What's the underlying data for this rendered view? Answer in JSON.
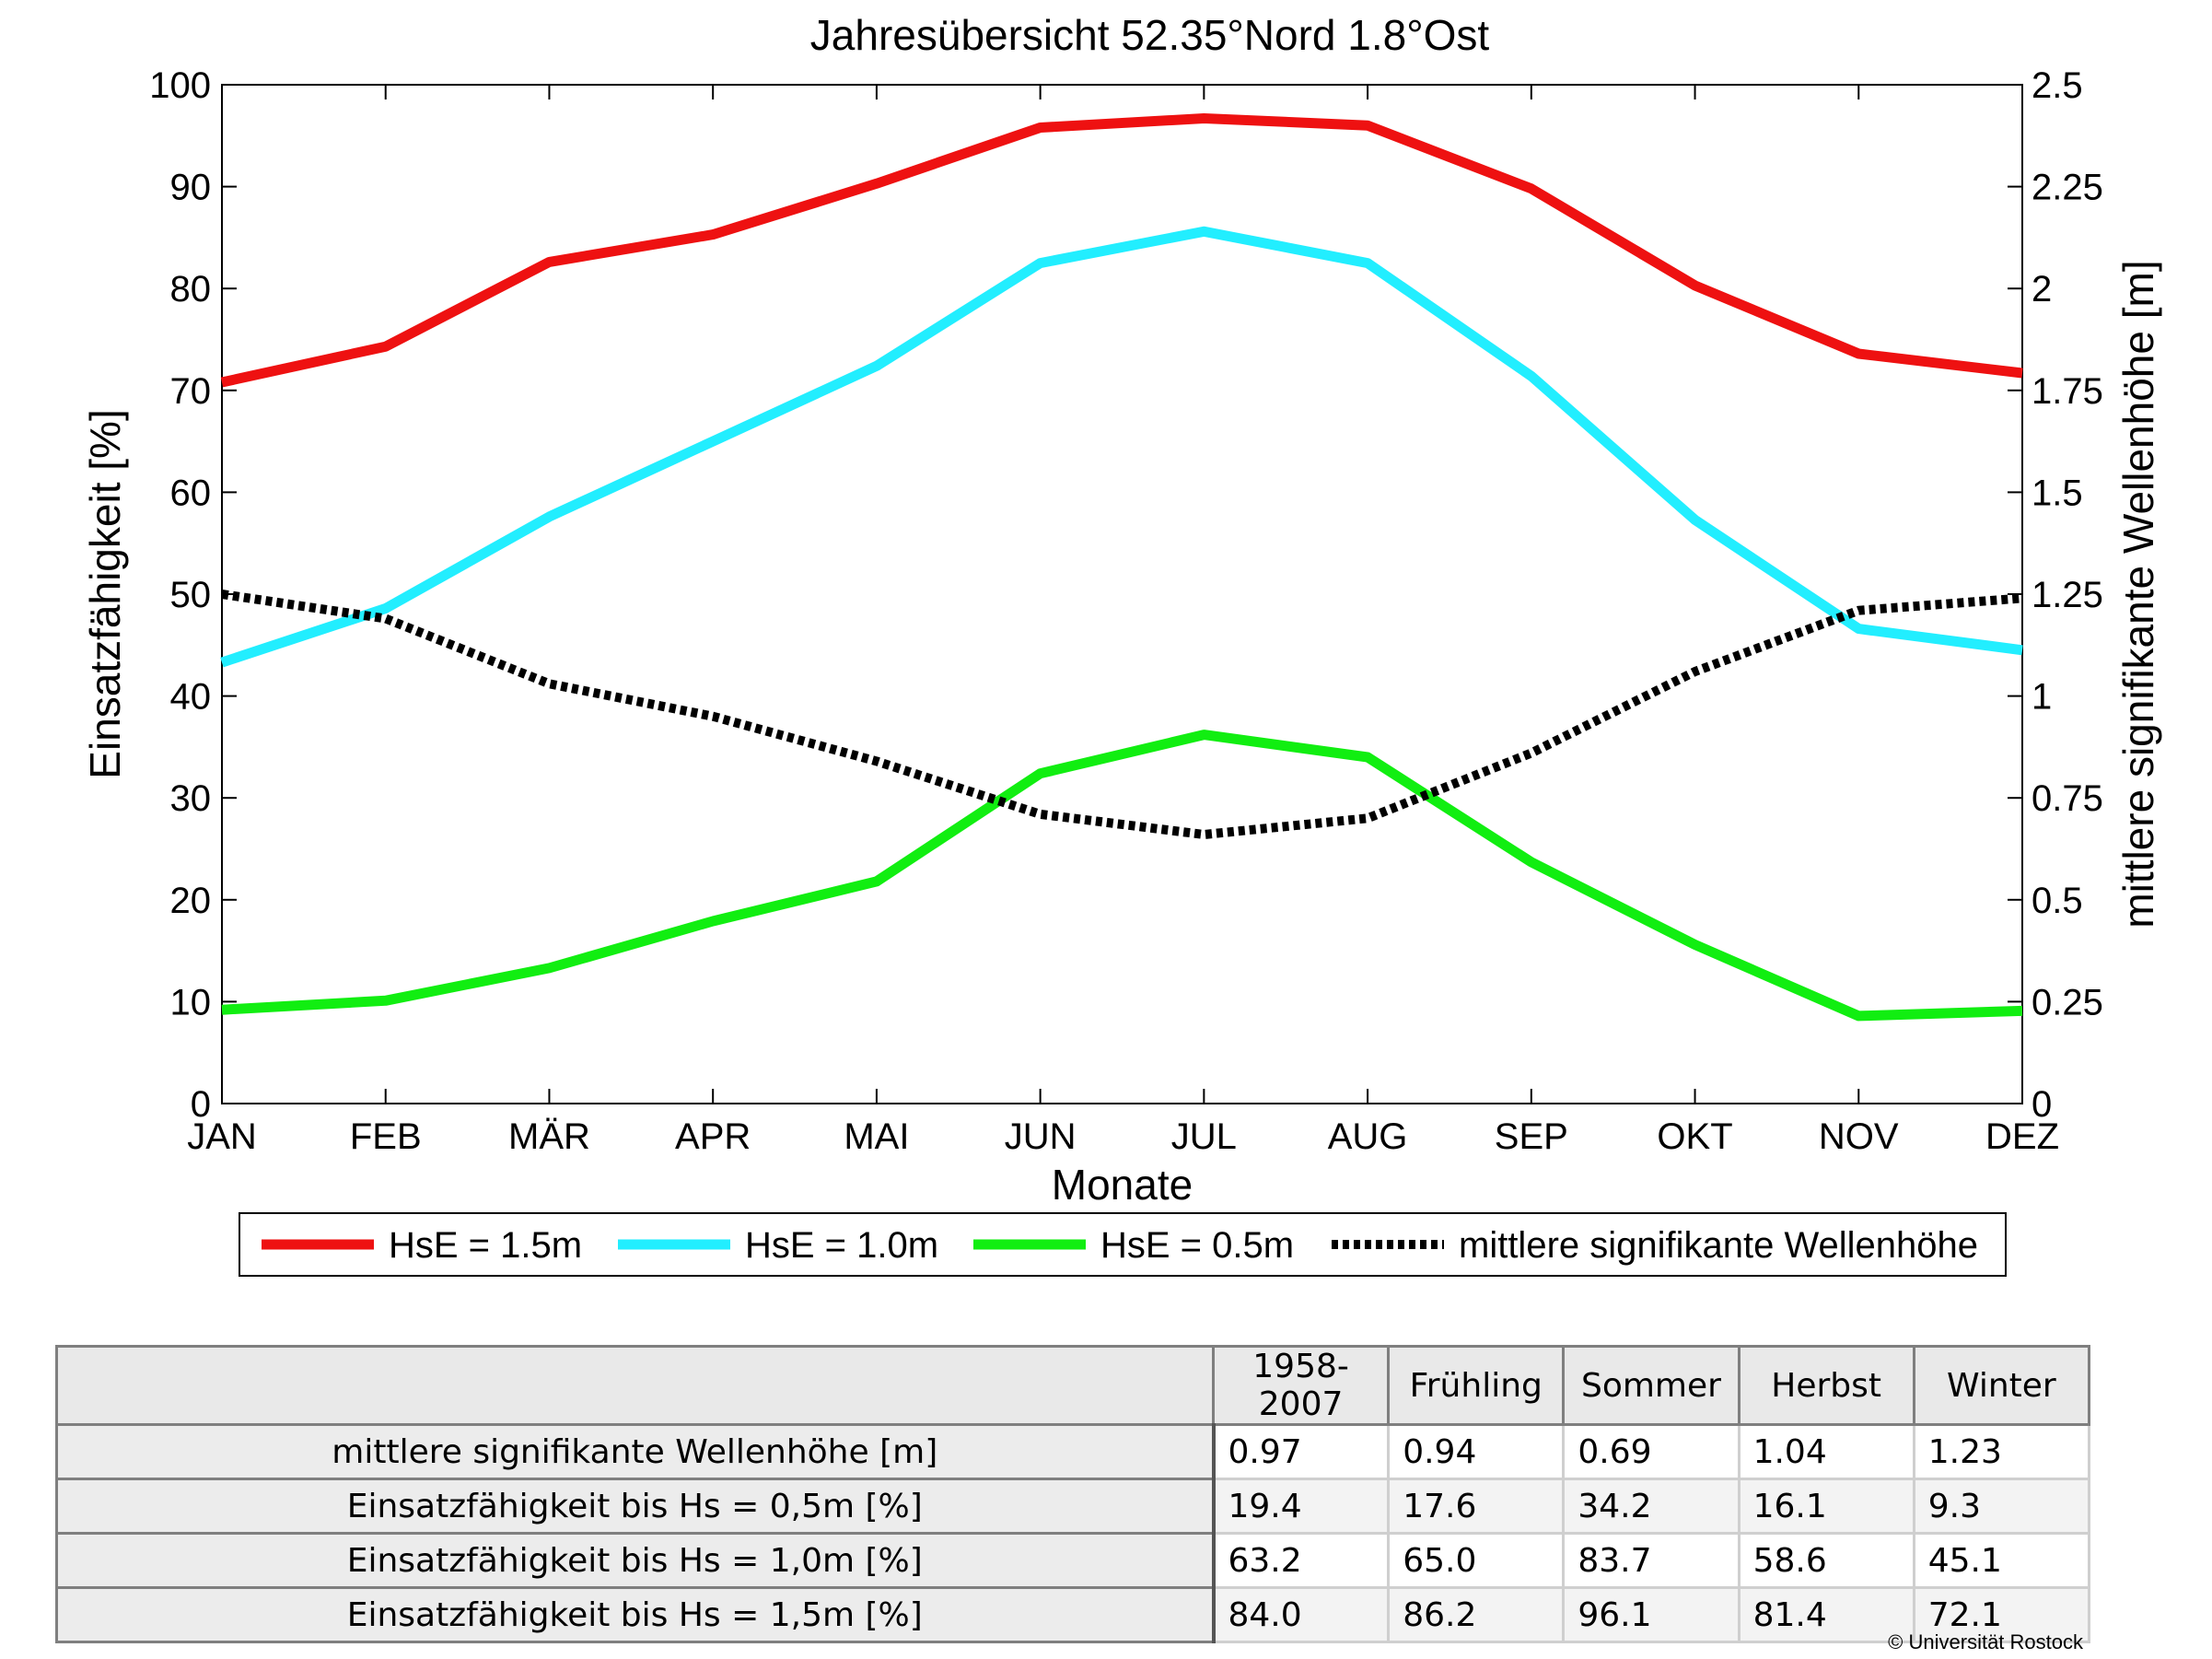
{
  "chart_data": {
    "type": "line",
    "title": "Jahresübersicht  52.35°Nord  1.8°Ost",
    "xlabel": "Monate",
    "ylabel": "Einsatzfähigkeit [%]",
    "y2label": "mittlere signifikante Wellenhöhe [m]",
    "categories": [
      "JAN",
      "FEB",
      "MÄR",
      "APR",
      "MAI",
      "JUN",
      "JUL",
      "AUG",
      "SEP",
      "OKT",
      "NOV",
      "DEZ"
    ],
    "ylim": [
      0,
      100
    ],
    "yticks": [
      "0",
      "10",
      "20",
      "30",
      "40",
      "50",
      "60",
      "70",
      "80",
      "90",
      "100"
    ],
    "y2lim": [
      0,
      2.5
    ],
    "y2ticks": [
      "0",
      "0.25",
      "0.5",
      "0.75",
      "1",
      "1.25",
      "1.5",
      "1.75",
      "2",
      "2.25",
      "2.5"
    ],
    "grid": false,
    "legend_position": "bottom",
    "series": [
      {
        "name": "HsE = 1.5m",
        "axis": "left",
        "color": "#ee1111",
        "style": "solid",
        "values": [
          70.8,
          74.3,
          82.6,
          85.3,
          90.3,
          95.8,
          96.7,
          96.0,
          89.8,
          80.3,
          73.6,
          71.7
        ]
      },
      {
        "name": "HsE = 1.0m",
        "axis": "left",
        "color": "#22eeff",
        "style": "solid",
        "values": [
          43.3,
          48.6,
          57.6,
          65.0,
          72.4,
          82.5,
          85.6,
          82.5,
          71.4,
          57.3,
          46.6,
          44.5
        ]
      },
      {
        "name": "HsE = 0.5m",
        "axis": "left",
        "color": "#11ee11",
        "style": "solid",
        "values": [
          9.2,
          10.1,
          13.3,
          17.9,
          21.8,
          32.4,
          36.2,
          34.0,
          23.7,
          15.6,
          8.6,
          9.1
        ]
      },
      {
        "name": "mittlere signifikante Wellenhöhe",
        "axis": "right",
        "color": "#000000",
        "style": "dotted",
        "values": [
          1.25,
          1.19,
          1.03,
          0.95,
          0.84,
          0.71,
          0.66,
          0.7,
          0.86,
          1.06,
          1.21,
          1.24
        ]
      }
    ]
  },
  "table": {
    "columns": [
      "",
      "1958-2007",
      "Frühling",
      "Sommer",
      "Herbst",
      "Winter"
    ],
    "rows": [
      {
        "label": "mittlere signifikante Wellenhöhe [m]",
        "values": [
          "0.97",
          "0.94",
          "0.69",
          "1.04",
          "1.23"
        ]
      },
      {
        "label": "Einsatzfähigkeit bis Hs = 0,5m [%]",
        "values": [
          "19.4",
          "17.6",
          "34.2",
          "16.1",
          "9.3"
        ]
      },
      {
        "label": "Einsatzfähigkeit bis Hs = 1,0m [%]",
        "values": [
          "63.2",
          "65.0",
          "83.7",
          "58.6",
          "45.1"
        ]
      },
      {
        "label": "Einsatzfähigkeit bis Hs = 1,5m [%]",
        "values": [
          "84.0",
          "86.2",
          "96.1",
          "81.4",
          "72.1"
        ]
      }
    ]
  },
  "copyright": "© Universität Rostock"
}
